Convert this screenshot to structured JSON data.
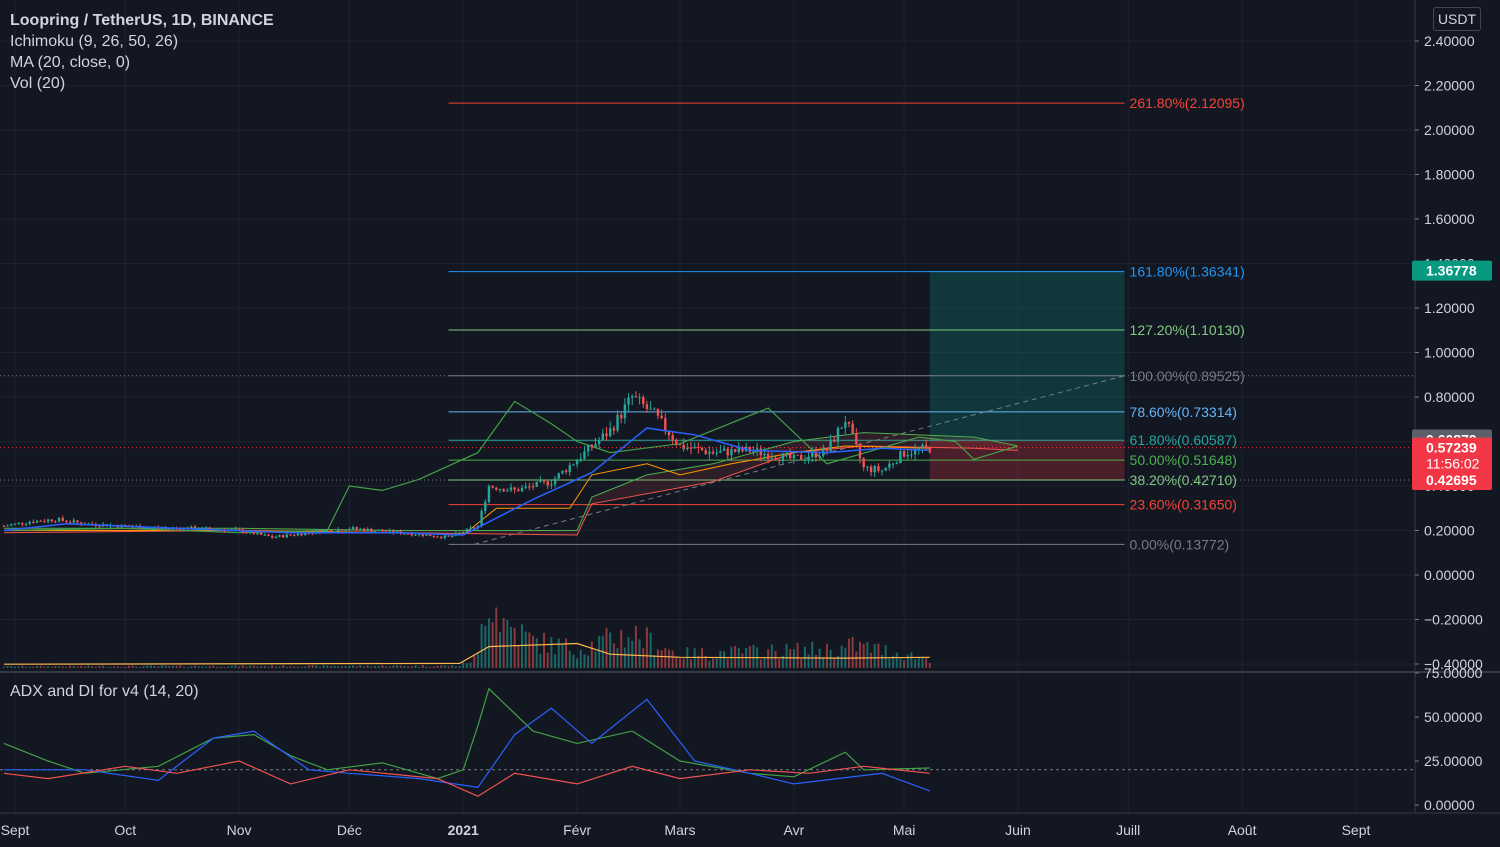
{
  "legend": {
    "title": "Loopring / TetherUS, 1D, BINANCE",
    "ichimoku": "Ichimoku (9, 26, 50, 26)",
    "ma": "MA (20, close, 0)",
    "vol": "Vol (20)"
  },
  "adx_legend": "ADX and DI for v4 (14, 20)",
  "currency": "USDT",
  "colors": {
    "background": "#131722",
    "grid": "#1e222d",
    "candle_up": "#26a69a",
    "candle_down": "#ef5350",
    "ma": "#2962ff",
    "ichimoku_lagging": "#43a047",
    "ichimoku_base": "#ff9800",
    "cloud_upper": "#4caf50",
    "cloud_lower": "#ef5350",
    "adx": "#43a047",
    "di_plus": "#2962ff",
    "di_minus": "#ef5350"
  },
  "chart_data": [
    {
      "type": "candlestick",
      "name": "price",
      "y_ticks": [
        "2.40000",
        "2.20000",
        "2.00000",
        "1.80000",
        "1.60000",
        "1.40000",
        "1.20000",
        "1.00000",
        "0.80000",
        "0.60000",
        "0.40000",
        "0.20000",
        "0.00000",
        "−0.20000",
        "−0.40000"
      ],
      "y_tick_values": [
        2.4,
        2.2,
        2.0,
        1.8,
        1.6,
        1.4,
        1.2,
        1.0,
        0.8,
        0.6,
        0.4,
        0.2,
        0.0,
        -0.2,
        -0.4
      ],
      "x_ticks": [
        "Sept",
        "Oct",
        "Nov",
        "Déc",
        "2021",
        "Févr",
        "Mars",
        "Avr",
        "Mai",
        "Juin",
        "Juill",
        "Août",
        "Sept"
      ],
      "x_tick_dates": [
        "2020-09-01",
        "2020-10-01",
        "2020-11-01",
        "2020-12-01",
        "2021-01-01",
        "2021-02-01",
        "2021-03-01",
        "2021-04-01",
        "2021-05-01",
        "2021-06-01",
        "2021-07-01",
        "2021-08-01",
        "2021-09-01"
      ],
      "ylim": [
        -0.4,
        2.4
      ],
      "price_path": [
        [
          "2020-08-29",
          0.22
        ],
        [
          "2020-09-05",
          0.24
        ],
        [
          "2020-09-12",
          0.25
        ],
        [
          "2020-09-20",
          0.23
        ],
        [
          "2020-10-01",
          0.22
        ],
        [
          "2020-10-10",
          0.21
        ],
        [
          "2020-10-20",
          0.21
        ],
        [
          "2020-11-01",
          0.2
        ],
        [
          "2020-11-10",
          0.17
        ],
        [
          "2020-11-20",
          0.19
        ],
        [
          "2020-12-01",
          0.21
        ],
        [
          "2020-12-15",
          0.19
        ],
        [
          "2020-12-28",
          0.17
        ],
        [
          "2021-01-05",
          0.22
        ],
        [
          "2021-01-08",
          0.4
        ],
        [
          "2021-01-15",
          0.38
        ],
        [
          "2021-01-25",
          0.42
        ],
        [
          "2021-02-01",
          0.52
        ],
        [
          "2021-02-10",
          0.65
        ],
        [
          "2021-02-16",
          0.8
        ],
        [
          "2021-02-22",
          0.72
        ],
        [
          "2021-03-01",
          0.58
        ],
        [
          "2021-03-10",
          0.55
        ],
        [
          "2021-03-20",
          0.56
        ],
        [
          "2021-04-01",
          0.52
        ],
        [
          "2021-04-10",
          0.56
        ],
        [
          "2021-04-15",
          0.7
        ],
        [
          "2021-04-20",
          0.48
        ],
        [
          "2021-04-25",
          0.47
        ],
        [
          "2021-05-01",
          0.55
        ],
        [
          "2021-05-08",
          0.57
        ]
      ],
      "ma_path": [
        [
          "2020-08-29",
          0.2
        ],
        [
          "2020-09-15",
          0.23
        ],
        [
          "2020-10-15",
          0.21
        ],
        [
          "2020-11-15",
          0.19
        ],
        [
          "2020-12-15",
          0.19
        ],
        [
          "2021-01-01",
          0.18
        ],
        [
          "2021-01-20",
          0.34
        ],
        [
          "2021-02-05",
          0.46
        ],
        [
          "2021-02-20",
          0.66
        ],
        [
          "2021-03-05",
          0.63
        ],
        [
          "2021-03-20",
          0.56
        ],
        [
          "2021-04-10",
          0.55
        ],
        [
          "2021-04-25",
          0.57
        ],
        [
          "2021-05-08",
          0.56
        ]
      ],
      "lagging_path": [
        [
          "2020-08-29",
          0.2
        ],
        [
          "2020-10-01",
          0.21
        ],
        [
          "2020-11-01",
          0.19
        ],
        [
          "2020-11-25",
          0.2
        ],
        [
          "2020-12-01",
          0.4
        ],
        [
          "2020-12-10",
          0.38
        ],
        [
          "2020-12-20",
          0.43
        ],
        [
          "2021-01-05",
          0.55
        ],
        [
          "2021-01-15",
          0.78
        ],
        [
          "2021-01-25",
          0.68
        ],
        [
          "2021-02-01",
          0.6
        ],
        [
          "2021-02-10",
          0.55
        ],
        [
          "2021-03-01",
          0.59
        ],
        [
          "2021-03-25",
          0.75
        ],
        [
          "2021-04-10",
          0.5
        ],
        [
          "2021-05-05",
          0.62
        ],
        [
          "2021-05-15",
          0.6
        ],
        [
          "2021-05-20",
          0.52
        ],
        [
          "2021-06-01",
          0.58
        ]
      ],
      "base_path": [
        [
          "2020-08-29",
          0.2
        ],
        [
          "2020-11-01",
          0.2
        ],
        [
          "2020-12-15",
          0.19
        ],
        [
          "2021-01-01",
          0.18
        ],
        [
          "2021-01-10",
          0.3
        ],
        [
          "2021-01-30",
          0.3
        ],
        [
          "2021-02-05",
          0.45
        ],
        [
          "2021-02-20",
          0.5
        ],
        [
          "2021-03-01",
          0.45
        ],
        [
          "2021-03-15",
          0.5
        ],
        [
          "2021-04-01",
          0.55
        ],
        [
          "2021-04-15",
          0.58
        ],
        [
          "2021-05-08",
          0.57
        ]
      ],
      "cloud_upper_path": [
        [
          "2020-08-29",
          0.21
        ],
        [
          "2020-11-01",
          0.21
        ],
        [
          "2020-12-15",
          0.2
        ],
        [
          "2021-02-01",
          0.2
        ],
        [
          "2021-02-05",
          0.35
        ],
        [
          "2021-02-20",
          0.45
        ],
        [
          "2021-03-10",
          0.5
        ],
        [
          "2021-04-01",
          0.6
        ],
        [
          "2021-04-20",
          0.64
        ],
        [
          "2021-05-20",
          0.62
        ],
        [
          "2021-06-01",
          0.58
        ]
      ],
      "cloud_lower_path": [
        [
          "2020-08-29",
          0.19
        ],
        [
          "2020-11-01",
          0.2
        ],
        [
          "2020-12-15",
          0.19
        ],
        [
          "2021-02-01",
          0.18
        ],
        [
          "2021-02-05",
          0.32
        ],
        [
          "2021-03-10",
          0.42
        ],
        [
          "2021-04-01",
          0.55
        ],
        [
          "2021-04-20",
          0.58
        ],
        [
          "2021-05-20",
          0.57
        ],
        [
          "2021-06-01",
          0.56
        ]
      ],
      "fib_levels": [
        {
          "label": "261.80%(2.12095)",
          "value": 2.12095,
          "color": "#f44336"
        },
        {
          "label": "161.80%(1.36341)",
          "value": 1.36341,
          "color": "#2196f3"
        },
        {
          "label": "127.20%(1.10130)",
          "value": 1.1013,
          "color": "#81c784"
        },
        {
          "label": "100.00%(0.89525)",
          "value": 0.89525,
          "color": "#787b86"
        },
        {
          "label": "78.60%(0.73314)",
          "value": 0.73314,
          "color": "#64b5f6"
        },
        {
          "label": "61.80%(0.60587)",
          "value": 0.60587,
          "color": "#26a69a"
        },
        {
          "label": "50.00%(0.51648)",
          "value": 0.51648,
          "color": "#4caf50"
        },
        {
          "label": "38.20%(0.42710)",
          "value": 0.4271,
          "color": "#81c784"
        },
        {
          "label": "23.60%(0.31650)",
          "value": 0.3165,
          "color": "#f44336"
        },
        {
          "label": "0.00%(0.13772)",
          "value": 0.13772,
          "color": "#787b86"
        }
      ],
      "fib_start_date": "2020-12-28",
      "fib_end_date": "2021-06-30",
      "fib_trend": [
        [
          "2021-01-04",
          0.13772
        ],
        [
          "2021-06-30",
          0.89525
        ]
      ],
      "position": {
        "entry": 0.60879,
        "target": 1.36778,
        "stop": 0.42695,
        "current": 0.57239,
        "start_date": "2021-05-08",
        "end_date": "2021-06-30"
      },
      "price_labels": [
        {
          "text": "1.36778",
          "value": 1.36778,
          "bg": "#089981",
          "fg": "#ffffff"
        },
        {
          "text": "0.60879",
          "value": 0.60879,
          "bg": "#5d606b",
          "fg": "#ffffff"
        },
        {
          "text": "0.57239",
          "sub": "11:56:02",
          "value": 0.57239,
          "bg": "#f23645",
          "fg": "#ffffff"
        },
        {
          "text": "0.42695",
          "value": 0.42695,
          "bg": "#f23645",
          "fg": "#ffffff"
        }
      ],
      "volume_profile": [
        [
          "2020-08-29",
          0.02
        ],
        [
          "2020-12-31",
          0.03
        ],
        [
          "2021-01-05",
          0.15
        ],
        [
          "2021-01-07",
          0.9
        ],
        [
          "2021-01-08",
          1.0
        ],
        [
          "2021-01-12",
          0.6
        ],
        [
          "2021-01-20",
          0.35
        ],
        [
          "2021-02-01",
          0.25
        ],
        [
          "2021-02-16",
          0.45
        ],
        [
          "2021-03-01",
          0.18
        ],
        [
          "2021-04-15",
          0.25
        ],
        [
          "2021-04-17",
          0.3
        ],
        [
          "2021-05-08",
          0.12
        ]
      ],
      "volume_ma": [
        [
          "2020-08-29",
          0.05
        ],
        [
          "2020-12-31",
          0.06
        ],
        [
          "2021-01-08",
          0.28
        ],
        [
          "2021-02-01",
          0.32
        ],
        [
          "2021-02-10",
          0.18
        ],
        [
          "2021-03-01",
          0.14
        ],
        [
          "2021-04-15",
          0.13
        ],
        [
          "2021-05-08",
          0.14
        ]
      ]
    },
    {
      "type": "line",
      "name": "adx",
      "y_ticks": [
        "75.00000",
        "50.00000",
        "25.00000",
        "0.00000"
      ],
      "y_tick_values": [
        75,
        50,
        25,
        0
      ],
      "ylim": [
        0,
        75
      ],
      "threshold": 20,
      "series": [
        {
          "color": "#43a047",
          "points": [
            [
              "2020-08-29",
              35
            ],
            [
              "2020-09-10",
              25
            ],
            [
              "2020-09-20",
              18
            ],
            [
              "2020-10-10",
              22
            ],
            [
              "2020-10-25",
              38
            ],
            [
              "2020-11-05",
              40
            ],
            [
              "2020-11-15",
              28
            ],
            [
              "2020-11-25",
              20
            ],
            [
              "2020-12-10",
              24
            ],
            [
              "2020-12-25",
              15
            ],
            [
              "2021-01-01",
              20
            ],
            [
              "2021-01-05",
              45
            ],
            [
              "2021-01-08",
              66
            ],
            [
              "2021-01-20",
              42
            ],
            [
              "2021-02-01",
              35
            ],
            [
              "2021-02-16",
              42
            ],
            [
              "2021-03-01",
              25
            ],
            [
              "2021-03-20",
              18
            ],
            [
              "2021-04-01",
              16
            ],
            [
              "2021-04-15",
              30
            ],
            [
              "2021-04-20",
              20
            ],
            [
              "2021-05-08",
              21
            ]
          ]
        },
        {
          "color": "#2962ff",
          "points": [
            [
              "2020-08-29",
              20
            ],
            [
              "2020-09-20",
              20
            ],
            [
              "2020-10-10",
              14
            ],
            [
              "2020-10-25",
              38
            ],
            [
              "2020-11-05",
              42
            ],
            [
              "2020-11-20",
              20
            ],
            [
              "2020-12-01",
              18
            ],
            [
              "2020-12-20",
              15
            ],
            [
              "2021-01-05",
              10
            ],
            [
              "2021-01-15",
              40
            ],
            [
              "2021-01-25",
              55
            ],
            [
              "2021-02-05",
              35
            ],
            [
              "2021-02-20",
              60
            ],
            [
              "2021-03-05",
              25
            ],
            [
              "2021-03-20",
              18
            ],
            [
              "2021-04-01",
              12
            ],
            [
              "2021-04-25",
              18
            ],
            [
              "2021-05-08",
              8
            ]
          ]
        },
        {
          "color": "#ef5350",
          "points": [
            [
              "2020-08-29",
              18
            ],
            [
              "2020-09-10",
              15
            ],
            [
              "2020-10-01",
              22
            ],
            [
              "2020-10-15",
              18
            ],
            [
              "2020-11-01",
              25
            ],
            [
              "2020-11-15",
              12
            ],
            [
              "2020-12-01",
              20
            ],
            [
              "2020-12-25",
              15
            ],
            [
              "2021-01-05",
              5
            ],
            [
              "2021-01-15",
              18
            ],
            [
              "2021-02-01",
              12
            ],
            [
              "2021-02-16",
              22
            ],
            [
              "2021-03-01",
              15
            ],
            [
              "2021-03-20",
              20
            ],
            [
              "2021-04-05",
              18
            ],
            [
              "2021-04-20",
              22
            ],
            [
              "2021-05-08",
              18
            ]
          ]
        }
      ]
    }
  ]
}
